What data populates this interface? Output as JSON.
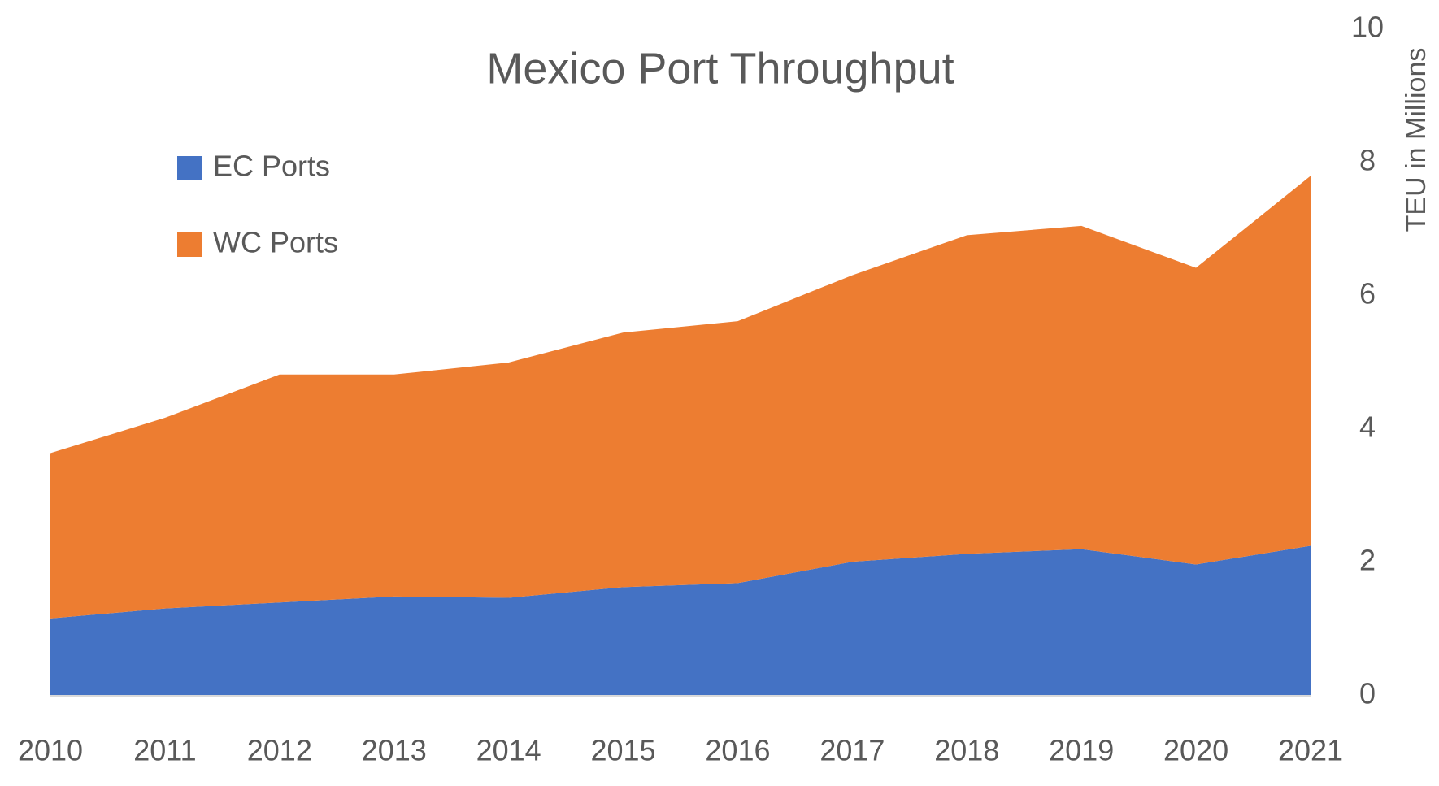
{
  "chart_data": {
    "type": "stacked-area",
    "title": "Mexico Port Throughput",
    "y_axis_label": "TEU in Millions",
    "categories": [
      "2010",
      "2011",
      "2012",
      "2013",
      "2014",
      "2015",
      "2016",
      "2017",
      "2018",
      "2019",
      "2020",
      "2021"
    ],
    "series": [
      {
        "name": "EC Ports",
        "color": "#4472c4",
        "values": [
          1.16,
          1.31,
          1.4,
          1.49,
          1.47,
          1.63,
          1.69,
          2.01,
          2.13,
          2.2,
          1.97,
          2.25
        ]
      },
      {
        "name": "WC Ports",
        "color": "#ed7d31",
        "values": [
          2.48,
          2.86,
          3.42,
          3.33,
          3.53,
          3.82,
          3.93,
          4.3,
          4.78,
          4.85,
          4.45,
          5.55
        ]
      }
    ],
    "ylim": [
      0,
      10
    ],
    "yticks": [
      0,
      2,
      4,
      6,
      8,
      10
    ],
    "grid": false,
    "legend": "upper left"
  }
}
